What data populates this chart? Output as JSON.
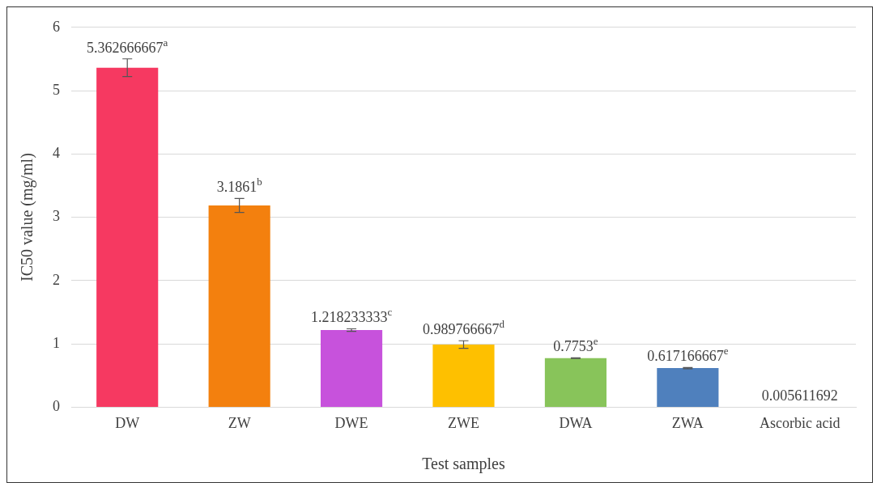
{
  "chart_data": {
    "type": "bar",
    "xlabel": "Test samples",
    "ylabel": "IC50 value (mg/ml)",
    "categories": [
      "DW",
      "ZW",
      "DWE",
      "ZWE",
      "DWA",
      "ZWA",
      "Ascorbic acid"
    ],
    "values": [
      5.362666667,
      3.1861,
      1.218233333,
      0.989766667,
      0.7753,
      0.617166667,
      0.005611692
    ],
    "colors": [
      "#f63961",
      "#f3800e",
      "#c752dc",
      "#fec000",
      "#88c45a",
      "#4f80bd",
      "#6f9fd8"
    ],
    "errors": [
      0.14,
      0.11,
      0.02,
      0.06,
      0.005,
      0.01,
      null
    ],
    "value_labels": [
      "5.362666667$^{a}$",
      "3.1861$^{b}$",
      "1.218233333$^{c}$",
      "0.989766667$^{d}$",
      "0.7753$^{e}$",
      "0.617166667$^{e}$",
      "0.005611692"
    ],
    "ylim": [
      0,
      6
    ],
    "yticks": [
      0,
      1,
      2,
      3,
      4,
      5,
      6
    ],
    "grid": "y",
    "legend": false
  }
}
